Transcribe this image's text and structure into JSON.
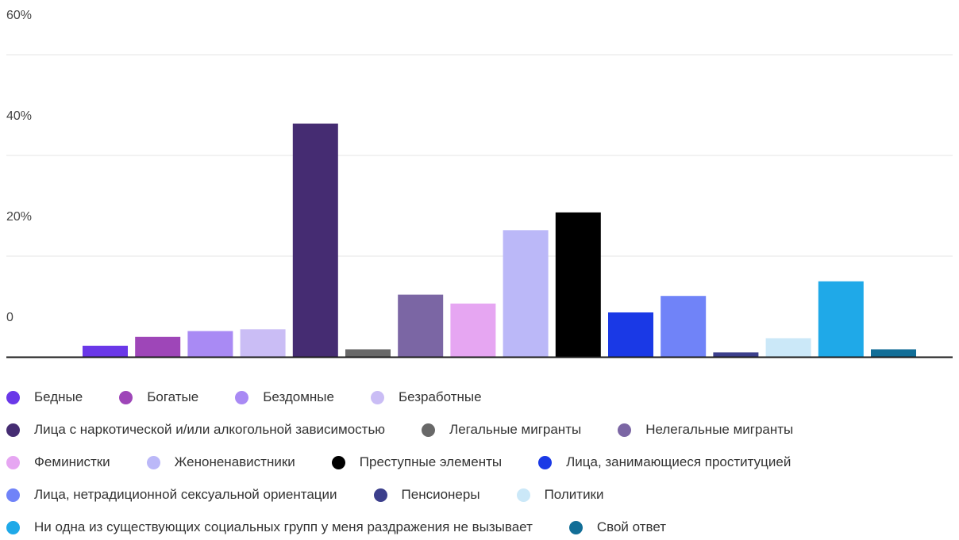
{
  "chart_data": {
    "type": "bar",
    "yticks": [
      "60%",
      "40%",
      "20%",
      "0"
    ],
    "ylim": [
      -8,
      60
    ],
    "grid": true,
    "legend_position": "bottom",
    "categories": [
      "Бедные",
      "Богатые",
      "Бездомные",
      "Безработные",
      "Лица с наркотической и/или алкогольной зависимостью",
      "Легальные мигранты",
      "Нелегальные мигранты",
      "Феминистки",
      "Женоненавистники",
      "Преступные элементы",
      "Лица, занимающиеся проституцией",
      "Лица, нетрадиционной сексуальной ориентации",
      "Пенсионеры",
      "Политики",
      "Ни одна из существующих социальных групп у меня раздражения не вызывает",
      "Свой ответ"
    ],
    "values": [
      -5.5,
      -3.5,
      -2.2,
      -1.8,
      44.5,
      -6.3,
      6.0,
      4.0,
      20.5,
      24.5,
      2.0,
      5.7,
      -7.0,
      -3.8,
      9.0,
      -6.3
    ],
    "colors": [
      "#6a38e8",
      "#9e46b8",
      "#a98af4",
      "#cabdf5",
      "#452c72",
      "#686868",
      "#7b66a4",
      "#e6a6f2",
      "#bbb8f8",
      "#000000",
      "#1a39e6",
      "#7083f8",
      "#3c3f8c",
      "#cbe8f8",
      "#1fa9e8",
      "#126e97"
    ],
    "legend_rows": [
      [
        0,
        1,
        2,
        3
      ],
      [
        4,
        5,
        6
      ],
      [
        7,
        8,
        9,
        10
      ],
      [
        11,
        12,
        13
      ],
      [
        14,
        15
      ]
    ]
  }
}
